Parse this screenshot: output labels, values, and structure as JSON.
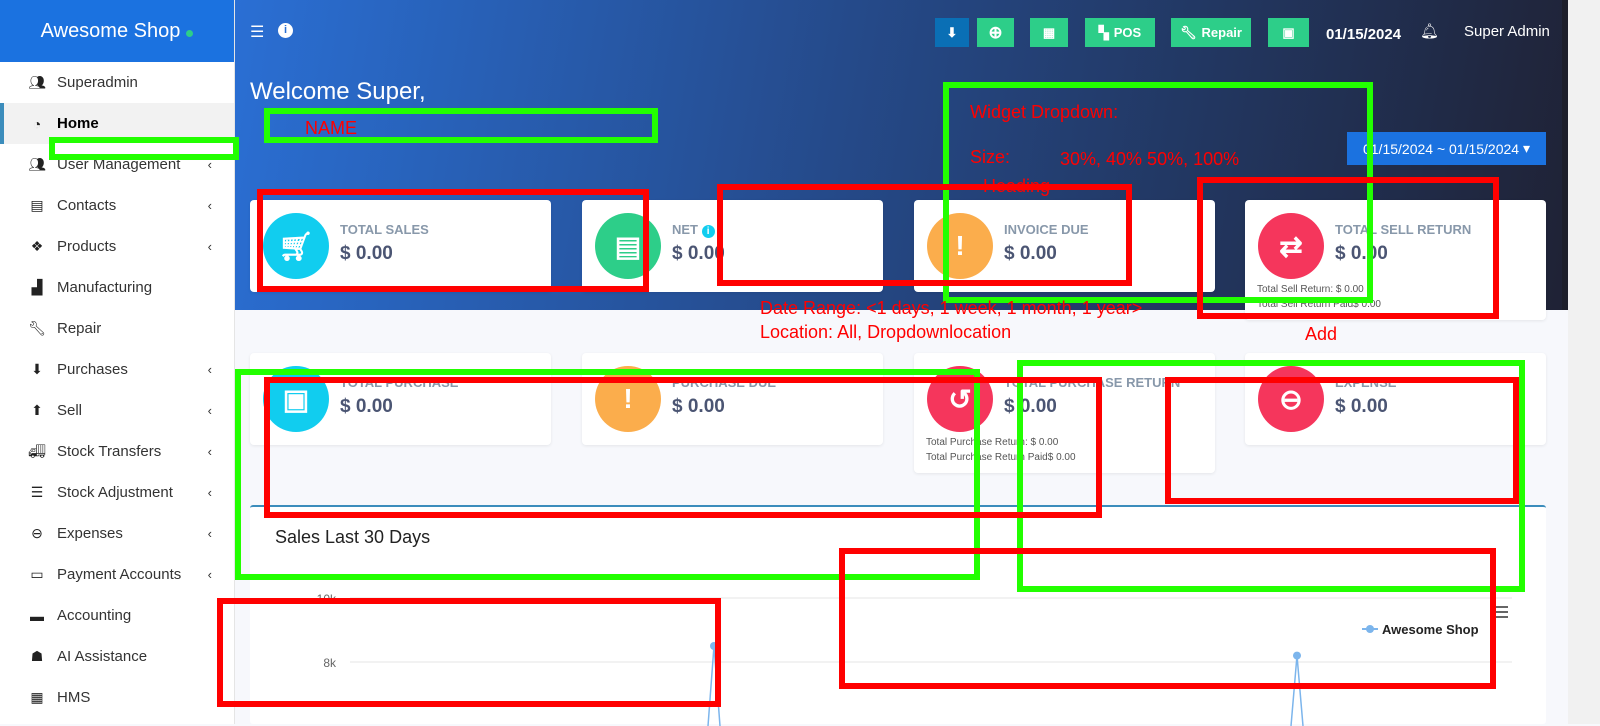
{
  "app": {
    "title": "Awesome Shop"
  },
  "sidebar": {
    "items": [
      {
        "label": "Superadmin",
        "icon": "users-cog-icon",
        "chevron": false
      },
      {
        "label": "Home",
        "icon": "dashboard-icon",
        "chevron": false,
        "active": true
      },
      {
        "label": "User Management",
        "icon": "users-icon",
        "chevron": true
      },
      {
        "label": "Contacts",
        "icon": "address-book-icon",
        "chevron": true
      },
      {
        "label": "Products",
        "icon": "cubes-icon",
        "chevron": true
      },
      {
        "label": "Manufacturing",
        "icon": "industry-icon",
        "chevron": false
      },
      {
        "label": "Repair",
        "icon": "wrench-icon",
        "chevron": false
      },
      {
        "label": "Purchases",
        "icon": "arrow-circle-down-icon",
        "chevron": true
      },
      {
        "label": "Sell",
        "icon": "arrow-circle-up-icon",
        "chevron": true
      },
      {
        "label": "Stock Transfers",
        "icon": "truck-icon",
        "chevron": true
      },
      {
        "label": "Stock Adjustment",
        "icon": "database-icon",
        "chevron": true
      },
      {
        "label": "Expenses",
        "icon": "minus-circle-icon",
        "chevron": true
      },
      {
        "label": "Payment Accounts",
        "icon": "money-check-icon",
        "chevron": true
      },
      {
        "label": "Accounting",
        "icon": "credit-card-icon",
        "chevron": false
      },
      {
        "label": "AI Assistance",
        "icon": "robot-icon",
        "chevron": false
      },
      {
        "label": "HMS",
        "icon": "hotel-icon",
        "chevron": false
      }
    ]
  },
  "header": {
    "pos_label": "POS",
    "repair_label": "Repair",
    "date": "01/15/2024",
    "user": "Super Admin"
  },
  "welcome": "Welcome Super,",
  "date_range": "01/15/2024 ~ 01/15/2024",
  "cards": [
    {
      "label": "TOTAL SALES",
      "value": "$ 0.00",
      "color": "#11cdef",
      "icon": "cart-icon"
    },
    {
      "label": "NET",
      "value": "$ 0.00",
      "color": "#2dce89",
      "icon": "newspaper-icon"
    },
    {
      "label": "INVOICE DUE",
      "value": "$ 0.00",
      "color": "#fbad4c",
      "icon": "invoice-alert-icon"
    },
    {
      "label": "TOTAL SELL RETURN",
      "value": "$ 0.00",
      "color": "#f5365c",
      "icon": "exchange-icon",
      "sub1": "Total Sell Return: $ 0.00",
      "sub2": "Total Sell Return Paid$ 0.00"
    },
    {
      "label": "TOTAL PURCHASE",
      "value": "$ 0.00",
      "color": "#11cdef",
      "icon": "money-bill-icon"
    },
    {
      "label": "PURCHASE DUE",
      "value": "$ 0.00",
      "color": "#fbad4c",
      "icon": "exclamation-icon"
    },
    {
      "label": "TOTAL PURCHASE RETURN",
      "value": "$ 0.00",
      "color": "#f5365c",
      "icon": "undo-icon",
      "sub1": "Total Purchase Return: $ 0.00",
      "sub2": "Total Purchase Return Paid$ 0.00"
    },
    {
      "label": "EXPENSE",
      "value": "$ 0.00",
      "color": "#f5365c",
      "icon": "minus-circle-icon"
    }
  ],
  "chart_data": {
    "type": "line",
    "title": "Sales Last 30 Days",
    "yticks": [
      "10k",
      "8k"
    ],
    "legend": "Awesome Shop",
    "legend_position": "top-right",
    "series": [
      {
        "name": "Awesome Shop",
        "color": "#7cb5ec",
        "peaks": [
          8500,
          8200
        ]
      }
    ],
    "grid": true
  },
  "annotations": {
    "name": "NAME",
    "widget_dropdown": "Widget Dropdown:",
    "size": "Size:",
    "size_options": "30%, 40% 50%, 100%",
    "heading": "Heading",
    "date_range": "Date Range: <1 days, 1 week, 1 month, 1 year>",
    "location": "Location: All, Dropdownlocation",
    "add": "Add"
  }
}
